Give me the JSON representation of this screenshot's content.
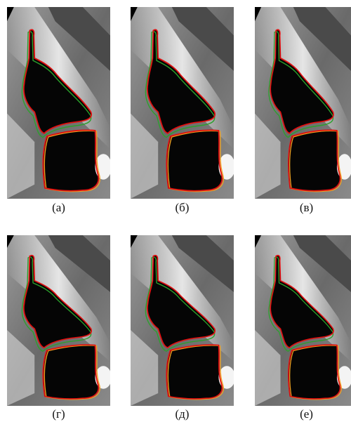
{
  "figure": {
    "panels": [
      {
        "caption": "(а)"
      },
      {
        "caption": "(б)"
      },
      {
        "caption": "(в)"
      },
      {
        "caption": "(г)"
      },
      {
        "caption": "(д)"
      },
      {
        "caption": "(е)"
      }
    ]
  }
}
